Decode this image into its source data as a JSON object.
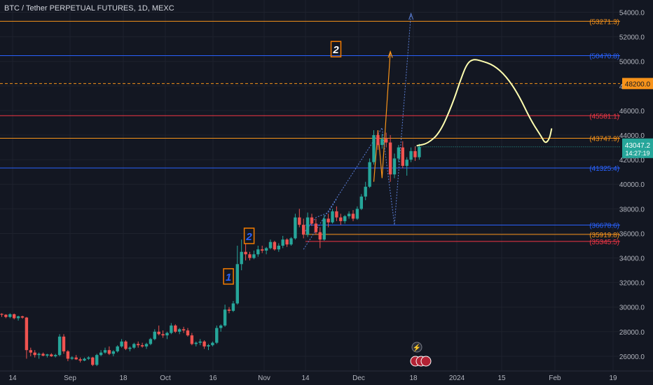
{
  "header": {
    "title": "BTC / Tether PERPETUAL FUTURES, 1D, MEXC"
  },
  "colors": {
    "background": "#131722",
    "grid": "#1e222d",
    "up": "#26a69a",
    "down": "#ef5350",
    "blue_line": "#2962ff",
    "orange_line": "#f7931a",
    "red_line": "#f23645",
    "drawing": "#ffffb0",
    "axis_text": "#b2b5be"
  },
  "chart_data": {
    "type": "candlestick",
    "title": "BTC / Tether PERPETUAL FUTURES, 1D, MEXC",
    "x_ticks": [
      "14",
      "Sep",
      "18",
      "Oct",
      "16",
      "Nov",
      "14",
      "Dec",
      "18",
      "2024",
      "15",
      "Feb",
      "19"
    ],
    "y_ticks": [
      26000,
      28000,
      30000,
      32000,
      34000,
      36000,
      38000,
      40000,
      42000,
      44000,
      46000,
      48000,
      50000,
      52000,
      54000
    ],
    "ylim": [
      24800,
      55000
    ],
    "grid": true,
    "last_price": {
      "value": "43047.2",
      "countdown": "14:27:19"
    },
    "levels": [
      {
        "label": "(53271.3)",
        "value": 53271.3,
        "color": "orange"
      },
      {
        "label": "(50470.8)",
        "value": 50470.8,
        "color": "blue"
      },
      {
        "label": "48200.0",
        "value": 48200.0,
        "color": "orange_dashed"
      },
      {
        "label": "(45581.1)",
        "value": 45581.1,
        "color": "red"
      },
      {
        "label": "(43747.9)",
        "value": 43747.9,
        "color": "orange"
      },
      {
        "label": "(41325.4)",
        "value": 41325.4,
        "color": "blue"
      },
      {
        "label": "(36678.6)",
        "value": 36678.6,
        "color": "blue"
      },
      {
        "label": "(35919.8)",
        "value": 35919.8,
        "color": "orange"
      },
      {
        "label": "(35345.5)",
        "value": 35345.5,
        "color": "red"
      }
    ],
    "top_line": 55200,
    "wave_labels": [
      {
        "text": "1",
        "x_index": 54,
        "y": 32500
      },
      {
        "text": "2",
        "x_index": 59,
        "y": 35800
      },
      {
        "text": "2",
        "x_index": 80,
        "y": 51000
      }
    ],
    "candles": [
      [
        29450,
        29500,
        29200,
        29380
      ],
      [
        29380,
        29420,
        29100,
        29200
      ],
      [
        29200,
        29500,
        29100,
        29420
      ],
      [
        29420,
        29480,
        29000,
        29100
      ],
      [
        29100,
        29300,
        28900,
        29250
      ],
      [
        29250,
        29300,
        29050,
        29150
      ],
      [
        29150,
        29200,
        25800,
        26500
      ],
      [
        26500,
        26700,
        26000,
        26300
      ],
      [
        26300,
        26500,
        25900,
        26100
      ],
      [
        26100,
        26300,
        25800,
        26200
      ],
      [
        26200,
        26300,
        26000,
        26050
      ],
      [
        26050,
        26200,
        25900,
        26150
      ],
      [
        26150,
        26250,
        25950,
        26000
      ],
      [
        26000,
        26200,
        25900,
        26100
      ],
      [
        26100,
        27800,
        26000,
        27600
      ],
      [
        27600,
        27800,
        26200,
        26400
      ],
      [
        26400,
        26500,
        25600,
        25800
      ],
      [
        25800,
        26000,
        25700,
        25900
      ],
      [
        25900,
        26100,
        25700,
        25750
      ],
      [
        25750,
        25900,
        25500,
        25650
      ],
      [
        25650,
        25900,
        25600,
        25800
      ],
      [
        25800,
        26000,
        25700,
        25900
      ],
      [
        25900,
        25950,
        25200,
        25300
      ],
      [
        25300,
        26200,
        25200,
        26100
      ],
      [
        26100,
        26500,
        26000,
        26300
      ],
      [
        26300,
        26700,
        26200,
        26500
      ],
      [
        26500,
        26800,
        26100,
        26200
      ],
      [
        26200,
        26500,
        26000,
        26400
      ],
      [
        26400,
        26900,
        26300,
        26800
      ],
      [
        26800,
        27400,
        26700,
        27200
      ],
      [
        27200,
        27300,
        26500,
        26600
      ],
      [
        26600,
        26800,
        26400,
        26700
      ],
      [
        26700,
        27100,
        26600,
        27000
      ],
      [
        27000,
        27200,
        26700,
        26900
      ],
      [
        26900,
        27100,
        26700,
        26800
      ],
      [
        26800,
        27100,
        26600,
        27000
      ],
      [
        27000,
        27500,
        26900,
        27400
      ],
      [
        27400,
        28200,
        27300,
        28000
      ],
      [
        28000,
        28500,
        27700,
        27800
      ],
      [
        27800,
        28100,
        27500,
        27700
      ],
      [
        27700,
        28000,
        27400,
        27900
      ],
      [
        27900,
        28700,
        27800,
        28500
      ],
      [
        28500,
        28600,
        27900,
        28000
      ],
      [
        28000,
        28300,
        27800,
        28200
      ],
      [
        28200,
        28400,
        27900,
        28100
      ],
      [
        28100,
        28300,
        27600,
        27700
      ],
      [
        27700,
        27900,
        26900,
        27000
      ],
      [
        27000,
        27200,
        26800,
        27100
      ],
      [
        27100,
        27400,
        26900,
        27200
      ],
      [
        27200,
        27300,
        26600,
        26800
      ],
      [
        26800,
        27000,
        26500,
        26900
      ],
      [
        26900,
        27200,
        26800,
        27100
      ],
      [
        27100,
        28500,
        27000,
        28300
      ],
      [
        28300,
        28600,
        28000,
        28500
      ],
      [
        28500,
        30200,
        28400,
        29800
      ],
      [
        29800,
        30000,
        29500,
        29700
      ],
      [
        29700,
        30500,
        29600,
        30300
      ],
      [
        30300,
        35000,
        30200,
        33500
      ],
      [
        33500,
        35500,
        33000,
        34500
      ],
      [
        34500,
        35200,
        33800,
        34300
      ],
      [
        34300,
        34500,
        33800,
        34000
      ],
      [
        34000,
        34600,
        33900,
        34300
      ],
      [
        34300,
        35000,
        34100,
        34700
      ],
      [
        34700,
        35000,
        34400,
        34600
      ],
      [
        34600,
        34900,
        34300,
        34800
      ],
      [
        34800,
        35500,
        34700,
        35300
      ],
      [
        35300,
        35400,
        34600,
        34700
      ],
      [
        34700,
        35200,
        34500,
        35000
      ],
      [
        35000,
        35800,
        34800,
        35500
      ],
      [
        35500,
        35600,
        34900,
        35100
      ],
      [
        35100,
        35700,
        35000,
        35600
      ],
      [
        35600,
        37600,
        35500,
        37300
      ],
      [
        37300,
        38000,
        36500,
        36700
      ],
      [
        36700,
        37200,
        35600,
        35900
      ],
      [
        35900,
        37700,
        35700,
        37300
      ],
      [
        37300,
        37600,
        36600,
        36800
      ],
      [
        36800,
        37200,
        35900,
        36100
      ],
      [
        36100,
        36500,
        34800,
        35500
      ],
      [
        35500,
        37500,
        35400,
        37200
      ],
      [
        37200,
        37600,
        36500,
        36900
      ],
      [
        36900,
        38000,
        36800,
        37800
      ],
      [
        37800,
        38200,
        37000,
        37300
      ],
      [
        37300,
        37600,
        36700,
        37000
      ],
      [
        37000,
        37500,
        36800,
        37400
      ],
      [
        37400,
        37800,
        37200,
        37600
      ],
      [
        37600,
        37900,
        37000,
        37200
      ],
      [
        37200,
        38200,
        37100,
        38000
      ],
      [
        38000,
        39200,
        37900,
        39000
      ],
      [
        39000,
        40200,
        38700,
        39800
      ],
      [
        39800,
        42100,
        39700,
        41800
      ],
      [
        41800,
        44400,
        41600,
        44000
      ],
      [
        44000,
        44300,
        42800,
        43200
      ],
      [
        43200,
        44100,
        42900,
        43700
      ],
      [
        43700,
        44200,
        43000,
        43400
      ],
      [
        43400,
        44000,
        40200,
        40800
      ],
      [
        40800,
        42500,
        40500,
        42100
      ],
      [
        42100,
        43200,
        41800,
        43000
      ],
      [
        43000,
        43500,
        41300,
        41500
      ],
      [
        41500,
        42200,
        40700,
        42000
      ],
      [
        42000,
        43000,
        41800,
        42700
      ],
      [
        42700,
        43100,
        41900,
        42200
      ],
      [
        42200,
        43300,
        42000,
        43047
      ]
    ],
    "forecast_curve": [
      [
        100.5,
        43150
      ],
      [
        103,
        43300
      ],
      [
        106,
        44200
      ],
      [
        109,
        46500
      ],
      [
        111,
        48500
      ],
      [
        112.5,
        49800
      ],
      [
        114,
        50200
      ],
      [
        116,
        50050
      ],
      [
        119,
        49700
      ],
      [
        122,
        48800
      ],
      [
        125,
        47300
      ],
      [
        128,
        45200
      ],
      [
        130.5,
        43900
      ],
      [
        131.5,
        43300
      ],
      [
        132.5,
        43700
      ],
      [
        133,
        44500
      ]
    ]
  }
}
